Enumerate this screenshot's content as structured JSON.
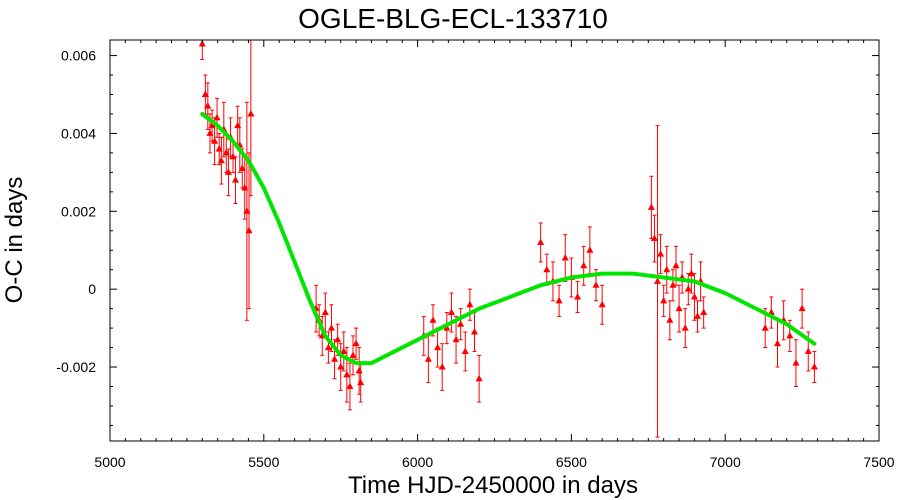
{
  "chart_data": {
    "type": "scatter",
    "title": "OGLE-BLG-ECL-133710",
    "xlabel": "Time HJD-2450000 in days",
    "ylabel": "O-C in days",
    "xlim": [
      5000,
      7500
    ],
    "ylim": [
      -0.0039,
      0.0064
    ],
    "xticks": [
      5000,
      5500,
      6000,
      6500,
      7000,
      7500
    ],
    "xtick_labels": [
      "5000",
      "5500",
      "6000",
      "6500",
      "7000",
      "7500"
    ],
    "yticks": [
      -0.002,
      0,
      0.002,
      0.004,
      0.006
    ],
    "ytick_labels": [
      "-0.002",
      "0",
      "0.002",
      "0.004",
      "0.006"
    ],
    "grid": false,
    "legend": "none",
    "colors": {
      "points": "#ff0000",
      "fit": "#00e600",
      "axes": "#000000"
    },
    "series": [
      {
        "kind": "points-with-errorbars",
        "x": [
          5300,
          5310,
          5318,
          5325,
          5332,
          5340,
          5348,
          5355,
          5362,
          5370,
          5378,
          5385,
          5392,
          5400,
          5408,
          5415,
          5422,
          5430,
          5438,
          5445,
          5452,
          5458,
          5670,
          5680,
          5690,
          5700,
          5710,
          5720,
          5730,
          5740,
          5750,
          5760,
          5770,
          5780,
          5790,
          5800,
          5810,
          5815,
          6020,
          6035,
          6050,
          6065,
          6080,
          6095,
          6110,
          6125,
          6140,
          6155,
          6170,
          6185,
          6200,
          6400,
          6420,
          6440,
          6460,
          6480,
          6500,
          6520,
          6540,
          6560,
          6580,
          6600,
          6760,
          6770,
          6780,
          6790,
          6800,
          6810,
          6820,
          6830,
          6840,
          6850,
          6860,
          6870,
          6880,
          6890,
          6900,
          6910,
          6920,
          6930,
          7130,
          7150,
          7170,
          7190,
          7210,
          7230,
          7250,
          7270,
          7290
        ],
        "y": [
          0.0063,
          0.005,
          0.0047,
          0.004,
          0.0042,
          0.0038,
          0.0044,
          0.0036,
          0.0033,
          0.0041,
          0.0035,
          0.003,
          0.0039,
          0.0034,
          0.0028,
          0.0042,
          0.0037,
          0.0031,
          0.0026,
          0.002,
          0.0015,
          0.0045,
          -0.0005,
          -0.0008,
          -0.0012,
          -0.0006,
          -0.0015,
          -0.001,
          -0.0018,
          -0.0013,
          -0.002,
          -0.0016,
          -0.0022,
          -0.0025,
          -0.0017,
          -0.0014,
          -0.0021,
          -0.0024,
          -0.0012,
          -0.0018,
          -0.0008,
          -0.0015,
          -0.002,
          -0.001,
          -0.0006,
          -0.0013,
          -0.0009,
          -0.0016,
          -0.0004,
          -0.0011,
          -0.0023,
          0.0012,
          0.0005,
          0.0002,
          -0.0003,
          0.0008,
          0.0003,
          -0.0002,
          0.0006,
          0.001,
          0.0001,
          -0.0004,
          0.0021,
          0.0013,
          0.0002,
          0.0009,
          -0.0003,
          0.0005,
          -0.0008,
          0.0001,
          0.0006,
          -0.0005,
          0.0003,
          -0.001,
          0.0,
          0.0004,
          -0.0002,
          -0.0007,
          0.0002,
          -0.0006,
          -0.001,
          -0.0006,
          -0.0014,
          -0.0008,
          -0.0012,
          -0.0019,
          -0.0005,
          -0.0016,
          -0.002
        ],
        "err": [
          0.0004,
          0.0005,
          0.0006,
          0.0005,
          0.0004,
          0.0006,
          0.0005,
          0.0004,
          0.0006,
          0.0007,
          0.0005,
          0.0006,
          0.0005,
          0.0004,
          0.0006,
          0.0005,
          0.0007,
          0.0005,
          0.0008,
          0.0028,
          0.002,
          0.0021,
          0.0006,
          0.0004,
          0.0005,
          0.0005,
          0.0004,
          0.0006,
          0.0005,
          0.0004,
          0.0006,
          0.0005,
          0.0007,
          0.0006,
          0.0005,
          0.0004,
          0.0006,
          0.0005,
          0.0005,
          0.0006,
          0.0004,
          0.0005,
          0.0006,
          0.0004,
          0.0005,
          0.0006,
          0.0004,
          0.0005,
          0.0004,
          0.0005,
          0.0006,
          0.0005,
          0.0004,
          0.0005,
          0.0004,
          0.0006,
          0.0005,
          0.0004,
          0.0005,
          0.0006,
          0.0004,
          0.0005,
          0.0008,
          0.0006,
          0.004,
          0.0005,
          0.0004,
          0.0006,
          0.0005,
          0.0004,
          0.0005,
          0.0006,
          0.0004,
          0.0005,
          0.0004,
          0.0005,
          0.0006,
          0.0004,
          0.0005,
          0.0004,
          0.0005,
          0.0004,
          0.0006,
          0.0005,
          0.0004,
          0.0006,
          0.0005,
          0.0005,
          0.0004
        ]
      },
      {
        "kind": "fit-curve",
        "x": [
          5300,
          5350,
          5400,
          5450,
          5500,
          5550,
          5600,
          5650,
          5700,
          5750,
          5800,
          5850,
          5900,
          6000,
          6100,
          6200,
          6300,
          6400,
          6500,
          6600,
          6700,
          6800,
          6900,
          7000,
          7100,
          7200,
          7290
        ],
        "y": [
          0.0045,
          0.0042,
          0.0038,
          0.0033,
          0.0026,
          0.0017,
          0.0007,
          -0.0003,
          -0.0012,
          -0.0017,
          -0.0019,
          -0.0019,
          -0.0017,
          -0.0013,
          -0.0009,
          -0.0005,
          -0.0002,
          0.0001,
          0.0003,
          0.0004,
          0.0004,
          0.0003,
          0.0002,
          -0.0001,
          -0.0005,
          -0.0009,
          -0.0014
        ]
      }
    ]
  }
}
